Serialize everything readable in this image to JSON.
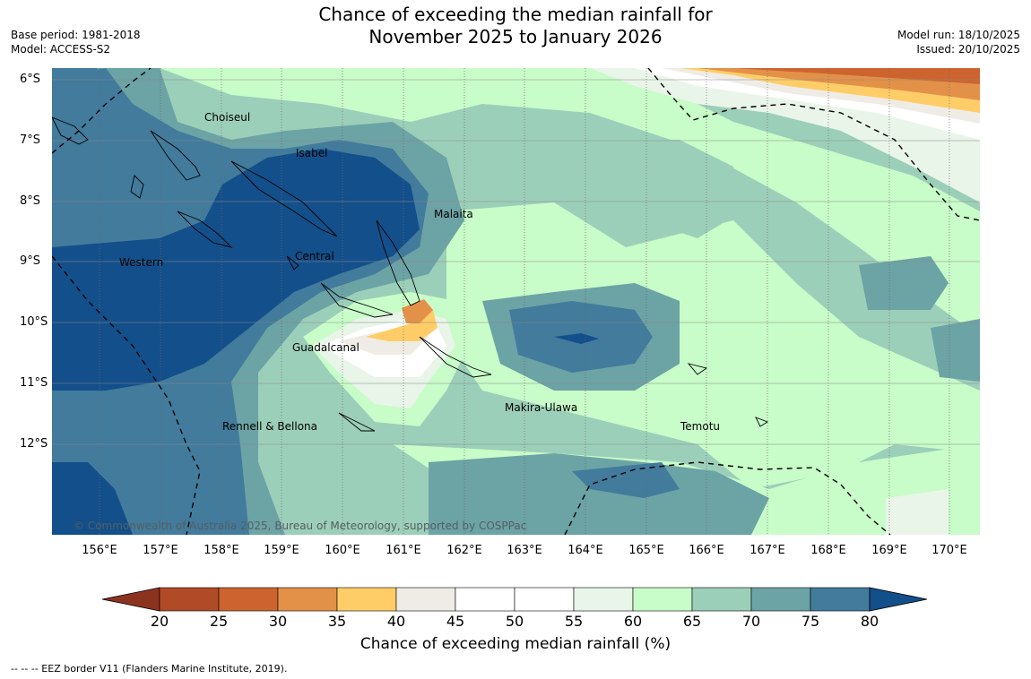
{
  "title": {
    "line1": "Chance of exceeding the median rainfall for",
    "line2": "November 2025 to January 2026"
  },
  "meta": {
    "base_period": "Base period: 1981-2018",
    "model": "Model: ACCESS-S2",
    "model_run": "Model run: 18/10/2025",
    "issued": "Issued: 20/10/2025"
  },
  "map": {
    "lat_ticks": [
      "6°S",
      "7°S",
      "8°S",
      "9°S",
      "10°S",
      "11°S",
      "12°S"
    ],
    "lon_ticks": [
      "156°E",
      "157°E",
      "158°E",
      "159°E",
      "160°E",
      "161°E",
      "162°E",
      "163°E",
      "164°E",
      "165°E",
      "166°E",
      "167°E",
      "168°E",
      "169°E",
      "170°E"
    ],
    "place_labels": [
      "Choiseul",
      "Isabel",
      "Malaita",
      "Western",
      "Central",
      "Guadalcanal",
      "Makira-Ulawa",
      "Rennell & Bellona",
      "Temotu"
    ],
    "copyright": "© Commonwealth of Australia 2025, Bureau of Meteorology, supported by COSPPac"
  },
  "colorbar": {
    "title": "Chance of exceeding median rainfall (%)",
    "labels": [
      "20",
      "25",
      "30",
      "35",
      "40",
      "45",
      "50",
      "55",
      "60",
      "65",
      "70",
      "75",
      "80"
    ],
    "colors": [
      "#8c3320",
      "#b04a27",
      "#cd6430",
      "#e39148",
      "#fecd68",
      "#efece6",
      "#ffffff",
      "#ffffff",
      "#e9f5e9",
      "#c8fcc8",
      "#9ccfb9",
      "#6ca3a5",
      "#427b9c",
      "#134f8a"
    ]
  },
  "legend": {
    "eez_text": "--  --  -- EEZ border V11 (Flanders Marine Institute, 2019)."
  }
}
